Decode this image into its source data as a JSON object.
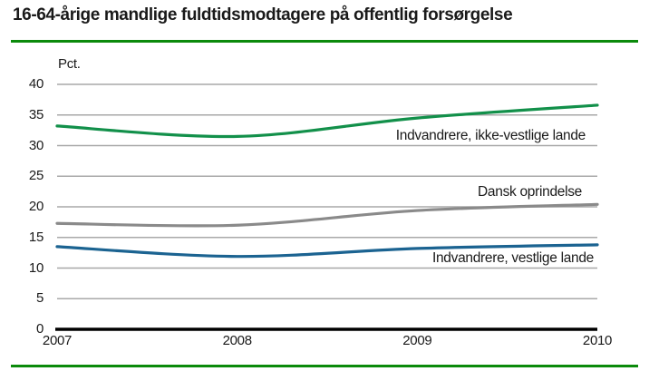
{
  "header": {
    "title": "16-64-årige mandlige fuldtidsmodtagere på offentlig forsørgelse"
  },
  "chart_data": {
    "type": "line",
    "title": "16-64-årige mandlige fuldtidsmodtagere på offentlig forsørgelse",
    "ylabel": "Pct.",
    "xlabel": "",
    "x": [
      "2007",
      "2008",
      "2009",
      "2010"
    ],
    "ylim": [
      0,
      40
    ],
    "ytick_step": 5,
    "grid": true,
    "legend_position": "inline-labels-right",
    "series": [
      {
        "name": "Indvandrere, ikke-vestlige lande",
        "color": "#12904a",
        "values": [
          33.2,
          31.5,
          34.5,
          36.6
        ],
        "label_pos": {
          "right": 70,
          "top": 141
        }
      },
      {
        "name": "Dansk oprindelse",
        "color": "#8a8a8a",
        "values": [
          17.3,
          17.0,
          19.4,
          20.4
        ],
        "label_pos": {
          "right": 74,
          "top": 203
        }
      },
      {
        "name": "Indvandrere, vestlige lande",
        "color": "#1b6391",
        "values": [
          13.5,
          11.9,
          13.2,
          13.8
        ],
        "label_pos": {
          "right": 61,
          "top": 276
        }
      }
    ]
  },
  "colors": {
    "accent_rule_green": "#0b8a0b",
    "grid_gray": "#a8a8a8",
    "axis_black": "#000000",
    "text_black": "#1a1a1a"
  }
}
